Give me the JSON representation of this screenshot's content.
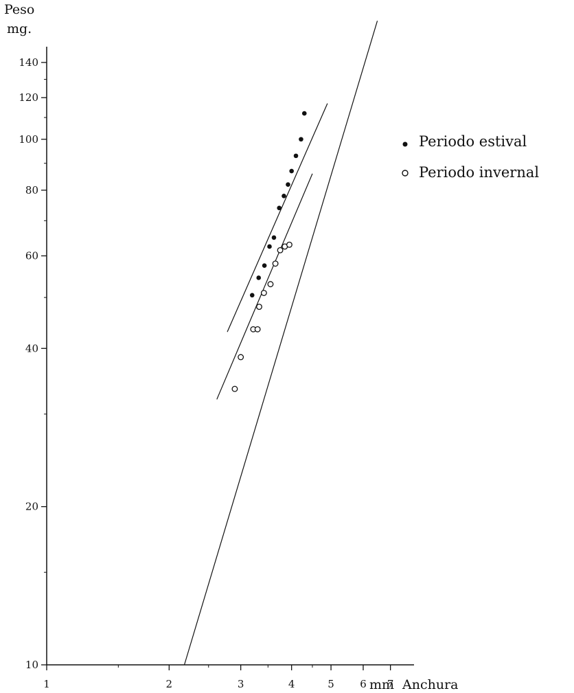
{
  "chart_data": {
    "type": "scatter",
    "title": "",
    "ylabel_line1": "Peso",
    "ylabel_line2": "mg.",
    "xlabel_unit": "mm",
    "xlabel": "Anchura",
    "xscale": "log",
    "yscale": "log",
    "xlim": [
      1,
      8
    ],
    "ylim": [
      10,
      150
    ],
    "grid": false,
    "legend_position": "top-right",
    "x_ticks": [
      {
        "value": 1,
        "label": "1"
      },
      {
        "value": 2,
        "label": "2"
      },
      {
        "value": 3,
        "label": "3"
      },
      {
        "value": 4,
        "label": "4"
      },
      {
        "value": 5,
        "label": "5"
      },
      {
        "value": 6,
        "label": "6"
      },
      {
        "value": 7,
        "label": "7"
      }
    ],
    "y_ticks": [
      {
        "value": 10,
        "label": "10"
      },
      {
        "value": 20,
        "label": "20"
      },
      {
        "value": 40,
        "label": "40"
      },
      {
        "value": 60,
        "label": "60"
      },
      {
        "value": 80,
        "label": "80"
      },
      {
        "value": 100,
        "label": "100"
      },
      {
        "value": 120,
        "label": "120"
      },
      {
        "value": 140,
        "label": "140"
      }
    ],
    "series": [
      {
        "name": "Periodo estival",
        "marker": "filled",
        "points": [
          {
            "x": 3.2,
            "y": 50.5
          },
          {
            "x": 3.32,
            "y": 54.5
          },
          {
            "x": 3.43,
            "y": 57.5
          },
          {
            "x": 3.53,
            "y": 62.5
          },
          {
            "x": 3.62,
            "y": 65
          },
          {
            "x": 3.73,
            "y": 74
          },
          {
            "x": 3.83,
            "y": 78
          },
          {
            "x": 3.92,
            "y": 82
          },
          {
            "x": 4.0,
            "y": 87
          },
          {
            "x": 4.1,
            "y": 93
          },
          {
            "x": 4.22,
            "y": 100
          },
          {
            "x": 4.3,
            "y": 112
          }
        ],
        "fit": [
          {
            "x": 2.78,
            "y": 43
          },
          {
            "x": 4.9,
            "y": 117
          }
        ]
      },
      {
        "name": "Periodo invernal",
        "marker": "open",
        "points": [
          {
            "x": 2.9,
            "y": 33.5
          },
          {
            "x": 3.0,
            "y": 38.5
          },
          {
            "x": 3.22,
            "y": 43.5
          },
          {
            "x": 3.3,
            "y": 43.5
          },
          {
            "x": 3.33,
            "y": 48
          },
          {
            "x": 3.42,
            "y": 51
          },
          {
            "x": 3.55,
            "y": 53
          },
          {
            "x": 3.65,
            "y": 58
          },
          {
            "x": 3.75,
            "y": 61.5
          },
          {
            "x": 3.85,
            "y": 62.5
          },
          {
            "x": 3.95,
            "y": 63
          }
        ],
        "fit": [
          {
            "x": 2.62,
            "y": 32
          },
          {
            "x": 4.5,
            "y": 86
          }
        ]
      },
      {
        "name": "",
        "marker": "none",
        "points": [],
        "fit": [
          {
            "x": 2.18,
            "y": 10
          },
          {
            "x": 6.5,
            "y": 168
          }
        ]
      }
    ]
  }
}
